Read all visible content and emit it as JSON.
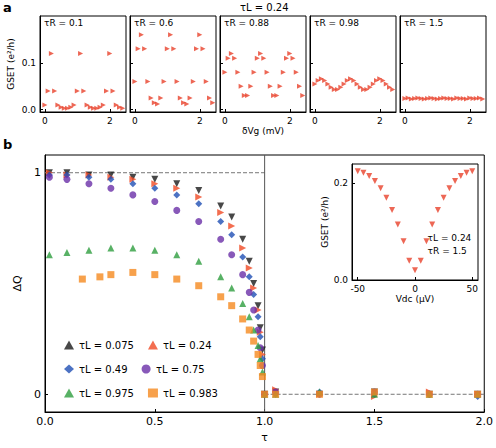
{
  "chart_data": [
    {
      "type": "scatter",
      "title": "τR = 0.1",
      "annotations": [
        "a",
        "τL = 0.24"
      ],
      "ylabel": "GSET (e²/h)",
      "x": [
        0,
        0.1,
        0.2,
        0.3,
        0.4,
        0.5,
        0.6,
        0.7,
        0.8,
        0.9,
        1.0,
        1.1,
        1.2,
        1.3,
        1.4,
        1.5,
        1.6,
        1.7,
        1.8,
        1.9,
        2.0,
        2.1,
        2.2,
        2.3,
        2.4
      ],
      "values": [
        0.01,
        0.04,
        0.12,
        0.04,
        0.01,
        0.005,
        0.003,
        0.003,
        0.005,
        0.01,
        0.04,
        0.12,
        0.04,
        0.01,
        0.005,
        0.003,
        0.003,
        0.005,
        0.01,
        0.04,
        0.12,
        0.04,
        0.01,
        0.005,
        0.003
      ],
      "color": "#e8412a",
      "marker": "triangle_right",
      "xlim": [
        -0.15,
        2.5
      ],
      "xticks": [
        0,
        2
      ],
      "ylim": [
        -0.005,
        0.2
      ],
      "yticks": [
        {
          "value": 0,
          "label": "0.0"
        },
        0.1
      ],
      "grid": false
    },
    {
      "type": "scatter",
      "title": "τR = 0.6",
      "x": [
        0,
        0.1,
        0.2,
        0.3,
        0.4,
        0.5,
        0.6,
        0.7,
        0.8,
        0.9,
        1.0,
        1.1,
        1.2,
        1.3,
        1.4,
        1.5,
        1.6,
        1.7,
        1.8,
        1.9,
        2.0,
        2.1,
        2.2,
        2.3,
        2.4
      ],
      "values": [
        0.06,
        0.13,
        0.16,
        0.13,
        0.06,
        0.025,
        0.015,
        0.012,
        0.025,
        0.06,
        0.13,
        0.16,
        0.13,
        0.06,
        0.025,
        0.015,
        0.012,
        0.025,
        0.06,
        0.13,
        0.16,
        0.13,
        0.06,
        0.025,
        0.015
      ],
      "color": "#e8412a",
      "marker": "triangle_right",
      "tick_labels": "x",
      "xlim": [
        -0.15,
        2.5
      ],
      "xticks": [
        0,
        2
      ],
      "ylim": [
        -0.005,
        0.2
      ],
      "yticks": [
        {
          "value": 0,
          "label": "0.0"
        },
        0.1
      ],
      "grid": false
    },
    {
      "type": "scatter",
      "title": "τR = 0.88",
      "xlabel": "δVg (mV)",
      "x": [
        0,
        0.1,
        0.2,
        0.3,
        0.4,
        0.5,
        0.6,
        0.7,
        0.8,
        0.9,
        1.0,
        1.1,
        1.2,
        1.3,
        1.4,
        1.5,
        1.6,
        1.7,
        1.8,
        1.9,
        2.0,
        2.1,
        2.2,
        2.3,
        2.4
      ],
      "values": [
        0.08,
        0.11,
        0.12,
        0.11,
        0.08,
        0.05,
        0.03,
        0.03,
        0.05,
        0.08,
        0.11,
        0.12,
        0.11,
        0.08,
        0.05,
        0.03,
        0.03,
        0.05,
        0.08,
        0.11,
        0.12,
        0.11,
        0.08,
        0.05,
        0.03
      ],
      "color": "#e8412a",
      "marker": "triangle_right",
      "tick_labels": "x",
      "xlim": [
        -0.15,
        2.5
      ],
      "xticks": [
        0,
        2
      ],
      "ylim": [
        -0.005,
        0.2
      ],
      "yticks": [
        {
          "value": 0,
          "label": "0.0"
        },
        0.1
      ],
      "grid": false
    },
    {
      "type": "scatter",
      "title": "τR = 0.98",
      "x": [
        0,
        0.1,
        0.2,
        0.3,
        0.4,
        0.5,
        0.6,
        0.7,
        0.8,
        0.9,
        1.0,
        1.1,
        1.2,
        1.3,
        1.4,
        1.5,
        1.6,
        1.7,
        1.8,
        1.9,
        2.0,
        2.1,
        2.2,
        2.3,
        2.4
      ],
      "values": [
        0.055,
        0.062,
        0.066,
        0.062,
        0.055,
        0.048,
        0.043,
        0.043,
        0.048,
        0.055,
        0.062,
        0.066,
        0.062,
        0.055,
        0.048,
        0.043,
        0.043,
        0.048,
        0.055,
        0.062,
        0.066,
        0.062,
        0.055,
        0.048,
        0.043
      ],
      "color": "#e8412a",
      "marker": "triangle_right",
      "tick_labels": "x",
      "xlim": [
        -0.15,
        2.5
      ],
      "xticks": [
        0,
        2
      ],
      "ylim": [
        -0.005,
        0.2
      ],
      "yticks": [
        {
          "value": 0,
          "label": "0.0"
        },
        0.1
      ],
      "grid": false
    },
    {
      "type": "scatter",
      "title": "τR = 1.5",
      "x": [
        0,
        0.1,
        0.2,
        0.3,
        0.4,
        0.5,
        0.6,
        0.7,
        0.8,
        0.9,
        1.0,
        1.1,
        1.2,
        1.3,
        1.4,
        1.5,
        1.6,
        1.7,
        1.8,
        1.9,
        2.0,
        2.1,
        2.2,
        2.3,
        2.4
      ],
      "values": [
        0.024,
        0.025,
        0.023,
        0.024,
        0.025,
        0.024,
        0.023,
        0.024,
        0.025,
        0.024,
        0.023,
        0.024,
        0.025,
        0.024,
        0.024,
        0.023,
        0.025,
        0.024,
        0.024,
        0.023,
        0.025,
        0.024,
        0.024,
        0.025,
        0.023
      ],
      "color": "#e8412a",
      "marker": "triangle_right",
      "tick_labels": "x",
      "xlim": [
        -0.15,
        2.5
      ],
      "xticks": [
        0,
        2
      ],
      "ylim": [
        -0.005,
        0.2
      ],
      "yticks": [
        {
          "value": 0,
          "label": "0.0"
        },
        0.1
      ],
      "grid": false
    },
    {
      "type": "scatter",
      "annotations": [
        "b"
      ],
      "xlabel": "τ",
      "ylabel": "ΔQ",
      "xlim": [
        0,
        2
      ],
      "xticks": [
        {
          "value": 0,
          "label": "0.0"
        },
        {
          "value": 0.5,
          "label": "0.5"
        },
        {
          "value": 1,
          "label": "1.0"
        },
        {
          "value": 1.5,
          "label": "1.5"
        },
        {
          "value": 2,
          "label": "2.0"
        }
      ],
      "ylim": [
        -0.08,
        1.08
      ],
      "yticks": [
        0,
        1
      ],
      "grid": false,
      "legend": "lower left",
      "series": [
        {
          "name": "τL = 0.075",
          "color": "#1a1a1a",
          "marker": "triangle_down",
          "x": [
            0.02,
            0.1,
            0.2,
            0.3,
            0.4,
            0.5,
            0.6,
            0.7,
            0.8,
            0.85,
            0.9,
            0.93,
            0.95,
            0.97,
            0.98,
            0.99,
            1.0,
            1.05,
            1.25,
            1.5,
            1.75,
            1.97
          ],
          "values": [
            1,
            1,
            0.99,
            0.99,
            0.98,
            0.97,
            0.95,
            0.92,
            0.85,
            0.8,
            0.7,
            0.6,
            0.5,
            0.4,
            0.3,
            0.2,
            0,
            0.01,
            0,
            0.01,
            0,
            0
          ]
        },
        {
          "name": "τL = 0.24",
          "color": "#f04a24",
          "marker": "triangle_right",
          "x": [
            0.02,
            0.1,
            0.2,
            0.3,
            0.4,
            0.5,
            0.6,
            0.7,
            0.8,
            0.85,
            0.9,
            0.93,
            0.95,
            0.97,
            0.98,
            0.99,
            1.0,
            1.05,
            1.25,
            1.5,
            1.75,
            1.97
          ],
          "values": [
            1,
            0.99,
            0.99,
            0.98,
            0.97,
            0.95,
            0.93,
            0.89,
            0.82,
            0.76,
            0.66,
            0.57,
            0.48,
            0.38,
            0.28,
            0.18,
            0,
            0.02,
            0,
            -0.01,
            0.01,
            0
          ]
        },
        {
          "name": "τL = 0.49",
          "color": "#1f4fb4",
          "marker": "diamond",
          "x": [
            0.02,
            0.1,
            0.2,
            0.3,
            0.4,
            0.5,
            0.6,
            0.7,
            0.8,
            0.85,
            0.9,
            0.93,
            0.95,
            0.97,
            0.98,
            0.99,
            1.0,
            1.05,
            1.25,
            1.5,
            1.75,
            1.97
          ],
          "values": [
            0.99,
            0.99,
            0.98,
            0.97,
            0.95,
            0.93,
            0.9,
            0.86,
            0.78,
            0.72,
            0.62,
            0.53,
            0.45,
            0.35,
            0.26,
            0.16,
            0,
            0,
            0.01,
            0,
            0,
            -0.01
          ]
        },
        {
          "name": "τL = 0.75",
          "color": "#6a2fa8",
          "marker": "circle",
          "x": [
            0.02,
            0.1,
            0.2,
            0.3,
            0.4,
            0.5,
            0.6,
            0.7,
            0.8,
            0.85,
            0.9,
            0.93,
            0.95,
            0.97,
            0.98,
            0.99,
            1.0,
            1.05,
            1.25,
            1.5,
            1.75,
            1.97
          ],
          "values": [
            0.98,
            0.97,
            0.95,
            0.93,
            0.9,
            0.87,
            0.83,
            0.78,
            0.7,
            0.63,
            0.54,
            0.46,
            0.38,
            0.29,
            0.21,
            0.13,
            0,
            0.01,
            0,
            0.01,
            0,
            0
          ]
        },
        {
          "name": "τL = 0.975",
          "color": "#2e9e3e",
          "marker": "triangle",
          "x": [
            0.02,
            0.1,
            0.2,
            0.3,
            0.4,
            0.5,
            0.6,
            0.7,
            0.8,
            0.85,
            0.9,
            0.93,
            0.95,
            0.97,
            0.98,
            0.99,
            1.0,
            1.05,
            1.25,
            1.5,
            1.75,
            1.97
          ],
          "values": [
            0.63,
            0.64,
            0.65,
            0.66,
            0.66,
            0.65,
            0.63,
            0.6,
            0.53,
            0.48,
            0.41,
            0.35,
            0.29,
            0.22,
            0.16,
            0.1,
            0,
            0,
            0.01,
            0,
            0,
            0
          ]
        },
        {
          "name": "τL = 0.983",
          "color": "#f5891f",
          "marker": "square",
          "x": [
            0.17,
            0.25,
            0.3,
            0.4,
            0.5,
            0.6,
            0.7,
            0.8,
            0.85,
            0.9,
            0.93,
            0.95,
            0.97,
            0.98,
            0.99,
            1.0,
            1.05,
            1.25,
            1.5,
            1.75,
            1.97
          ],
          "values": [
            0.52,
            0.53,
            0.54,
            0.55,
            0.54,
            0.52,
            0.49,
            0.44,
            0.4,
            0.34,
            0.29,
            0.24,
            0.18,
            0.13,
            0.08,
            0,
            0,
            0,
            0.01,
            0,
            0
          ]
        },
        {
          "type": "line",
          "line_style": "dashed",
          "color": "#777777",
          "x": [
            0,
            1
          ],
          "values": [
            1,
            1
          ]
        },
        {
          "type": "line",
          "line_style": "dashed",
          "color": "#777777",
          "x": [
            1,
            2
          ],
          "values": [
            0,
            0
          ]
        },
        {
          "type": "line",
          "line_style": "solid",
          "color": "#555555",
          "x": [
            1,
            1
          ],
          "values": [
            -0.08,
            1.08
          ]
        }
      ]
    },
    {
      "type": "scatter",
      "annotations": [
        "τL = 0.24",
        "τR = 1.5"
      ],
      "xlabel": "Vdc (μV)",
      "ylabel": "GSET (e²/h)",
      "x": [
        -50,
        -45,
        -40,
        -35,
        -30,
        -25,
        -20,
        -15,
        -10,
        -5,
        0,
        5,
        10,
        15,
        20,
        25,
        30,
        35,
        40,
        45,
        50
      ],
      "values": [
        0.225,
        0.222,
        0.215,
        0.205,
        0.19,
        0.17,
        0.145,
        0.115,
        0.08,
        0.04,
        0.02,
        0.04,
        0.08,
        0.115,
        0.145,
        0.17,
        0.19,
        0.205,
        0.215,
        0.222,
        0.225
      ],
      "color": "#e8412a",
      "marker": "triangle_down",
      "xlim": [
        -55,
        55
      ],
      "xticks": [
        -50,
        0,
        50
      ],
      "ylim": [
        0,
        0.24
      ],
      "yticks": [
        {
          "value": 0,
          "label": "0.0"
        },
        {
          "value": 0.2,
          "label": "0.2"
        }
      ],
      "grid": false
    }
  ]
}
